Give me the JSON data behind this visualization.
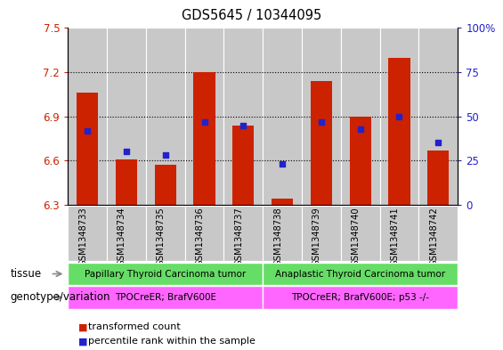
{
  "title": "GDS5645 / 10344095",
  "samples": [
    "GSM1348733",
    "GSM1348734",
    "GSM1348735",
    "GSM1348736",
    "GSM1348737",
    "GSM1348738",
    "GSM1348739",
    "GSM1348740",
    "GSM1348741",
    "GSM1348742"
  ],
  "transformed_count": [
    7.06,
    6.61,
    6.57,
    7.2,
    6.84,
    6.34,
    7.14,
    6.9,
    7.3,
    6.67
  ],
  "percentile_rank": [
    42,
    30,
    28,
    47,
    45,
    23,
    47,
    43,
    50,
    35
  ],
  "ylim_left": [
    6.3,
    7.5
  ],
  "ylim_right": [
    0,
    100
  ],
  "yticks_left": [
    6.3,
    6.6,
    6.9,
    7.2,
    7.5
  ],
  "yticks_right": [
    0,
    25,
    50,
    75,
    100
  ],
  "bar_color": "#cc2200",
  "dot_color": "#2222cc",
  "tissue_group1": "Papillary Thyroid Carcinoma tumor",
  "tissue_group2": "Anaplastic Thyroid Carcinoma tumor",
  "genotype_group1": "TPOCreER; BrafV600E",
  "genotype_group2": "TPOCreER; BrafV600E; p53 -/-",
  "tissue_color": "#66dd66",
  "genotype_color": "#ff66ff",
  "col_bg_color": "#c8c8c8",
  "split_index": 5,
  "bar_width": 0.55,
  "bg_color": "#ffffff",
  "label_color_left": "#cc2200",
  "label_color_right": "#2222cc",
  "legend_red_label": "transformed count",
  "legend_blue_label": "percentile rank within the sample",
  "grid_yticks": [
    6.6,
    6.9,
    7.2
  ]
}
